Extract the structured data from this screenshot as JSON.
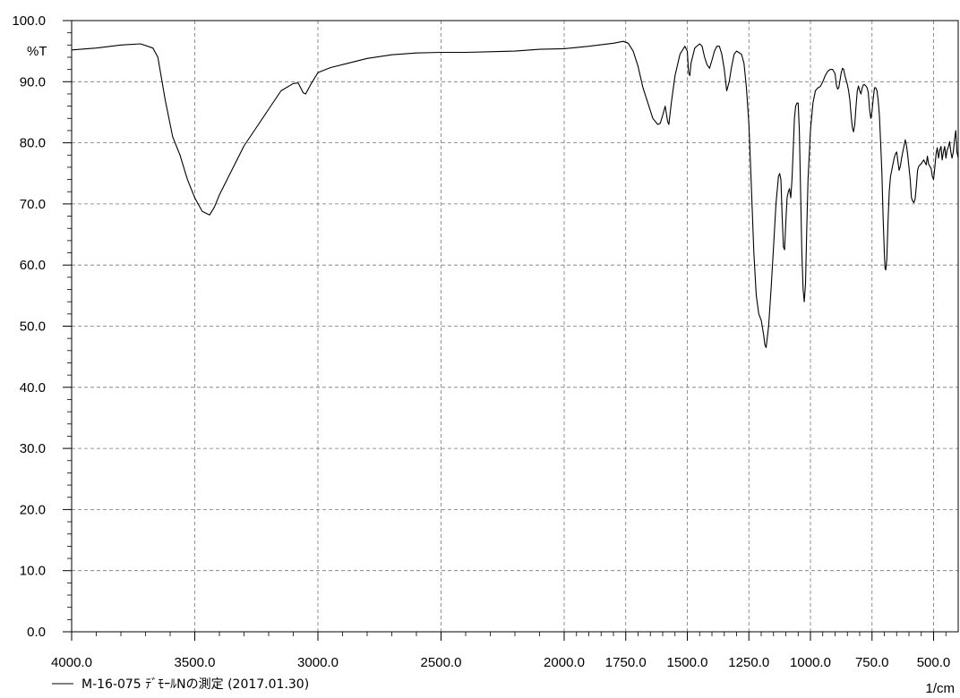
{
  "chart_data": {
    "type": "line",
    "ylabel": "%T",
    "xlabel": "1/cm",
    "xlim": [
      4000.0,
      400.0
    ],
    "ylim": [
      0.0,
      100.0
    ],
    "grid": true,
    "x_ticks": [
      {
        "value": 4000,
        "label": "4000.0"
      },
      {
        "value": 3500,
        "label": "3500.0"
      },
      {
        "value": 3000,
        "label": "3000.0"
      },
      {
        "value": 2500,
        "label": "2500.0"
      },
      {
        "value": 2000,
        "label": "2000.0"
      },
      {
        "value": 1750,
        "label": "1750.0"
      },
      {
        "value": 1500,
        "label": "1500.0"
      },
      {
        "value": 1250,
        "label": "1250.0"
      },
      {
        "value": 1000,
        "label": "1000.0"
      },
      {
        "value": 750,
        "label": "750.0"
      },
      {
        "value": 500,
        "label": "500.0"
      }
    ],
    "y_ticks": [
      {
        "value": 0,
        "label": "0.0"
      },
      {
        "value": 10,
        "label": "10.0"
      },
      {
        "value": 20,
        "label": "20.0"
      },
      {
        "value": 30,
        "label": "30.0"
      },
      {
        "value": 40,
        "label": "40.0"
      },
      {
        "value": 50,
        "label": "50.0"
      },
      {
        "value": 60,
        "label": "60.0"
      },
      {
        "value": 70,
        "label": "70.0"
      },
      {
        "value": 80,
        "label": "80.0"
      },
      {
        "value": 90,
        "label": "90.0"
      },
      {
        "value": 100,
        "label": "100.0"
      }
    ],
    "series": [
      {
        "name": "M-16-075 ﾃﾞﾓｰﾙNの測定 (2017.01.30)",
        "color": "#000000",
        "points": [
          [
            4000,
            95.2
          ],
          [
            3900,
            95.5
          ],
          [
            3800,
            96.0
          ],
          [
            3720,
            96.2
          ],
          [
            3670,
            95.5
          ],
          [
            3650,
            94.0
          ],
          [
            3620,
            87
          ],
          [
            3590,
            81
          ],
          [
            3560,
            78
          ],
          [
            3530,
            74
          ],
          [
            3500,
            71
          ],
          [
            3470,
            68.8
          ],
          [
            3440,
            68.2
          ],
          [
            3420,
            69.5
          ],
          [
            3400,
            71.5
          ],
          [
            3350,
            75.5
          ],
          [
            3300,
            79.5
          ],
          [
            3250,
            82.5
          ],
          [
            3200,
            85.5
          ],
          [
            3150,
            88.5
          ],
          [
            3100,
            89.7
          ],
          [
            3080,
            89.8
          ],
          [
            3060,
            88.2
          ],
          [
            3050,
            88.0
          ],
          [
            3030,
            89.5
          ],
          [
            3000,
            91.5
          ],
          [
            2950,
            92.3
          ],
          [
            2900,
            92.8
          ],
          [
            2800,
            93.8
          ],
          [
            2700,
            94.4
          ],
          [
            2600,
            94.7
          ],
          [
            2500,
            94.8
          ],
          [
            2400,
            94.8
          ],
          [
            2300,
            94.9
          ],
          [
            2200,
            95.0
          ],
          [
            2100,
            95.3
          ],
          [
            2000,
            95.4
          ],
          [
            1900,
            95.8
          ],
          [
            1800,
            96.3
          ],
          [
            1760,
            96.6
          ],
          [
            1740,
            96.3
          ],
          [
            1720,
            95
          ],
          [
            1700,
            92.5
          ],
          [
            1680,
            89
          ],
          [
            1660,
            86.5
          ],
          [
            1640,
            84
          ],
          [
            1620,
            83.0
          ],
          [
            1610,
            83.2
          ],
          [
            1600,
            84.5
          ],
          [
            1590,
            86.0
          ],
          [
            1580,
            83.5
          ],
          [
            1575,
            83.0
          ],
          [
            1565,
            86.5
          ],
          [
            1550,
            91
          ],
          [
            1530,
            94.5
          ],
          [
            1510,
            95.8
          ],
          [
            1500,
            95
          ],
          [
            1495,
            91.5
          ],
          [
            1490,
            91.0
          ],
          [
            1485,
            93
          ],
          [
            1470,
            95.5
          ],
          [
            1450,
            96.2
          ],
          [
            1440,
            95.8
          ],
          [
            1430,
            94
          ],
          [
            1420,
            92.8
          ],
          [
            1410,
            92.2
          ],
          [
            1400,
            93.5
          ],
          [
            1390,
            95
          ],
          [
            1380,
            95.8
          ],
          [
            1370,
            95.8
          ],
          [
            1360,
            94.5
          ],
          [
            1350,
            92
          ],
          [
            1340,
            88.5
          ],
          [
            1330,
            90
          ],
          [
            1320,
            92.5
          ],
          [
            1310,
            94.5
          ],
          [
            1300,
            95
          ],
          [
            1280,
            94.5
          ],
          [
            1270,
            93
          ],
          [
            1260,
            89
          ],
          [
            1250,
            83
          ],
          [
            1240,
            73
          ],
          [
            1230,
            62
          ],
          [
            1220,
            55
          ],
          [
            1210,
            52
          ],
          [
            1200,
            51
          ],
          [
            1190,
            48.5
          ],
          [
            1185,
            47
          ],
          [
            1180,
            46.5
          ],
          [
            1170,
            50
          ],
          [
            1160,
            56
          ],
          [
            1150,
            63
          ],
          [
            1140,
            70
          ],
          [
            1130,
            74.5
          ],
          [
            1125,
            75
          ],
          [
            1120,
            74
          ],
          [
            1115,
            68
          ],
          [
            1110,
            63
          ],
          [
            1105,
            62.5
          ],
          [
            1100,
            67
          ],
          [
            1095,
            71
          ],
          [
            1090,
            72
          ],
          [
            1085,
            72.5
          ],
          [
            1080,
            71
          ],
          [
            1075,
            74
          ],
          [
            1070,
            79
          ],
          [
            1065,
            84
          ],
          [
            1060,
            86
          ],
          [
            1055,
            86.5
          ],
          [
            1050,
            86.5
          ],
          [
            1045,
            82
          ],
          [
            1040,
            72
          ],
          [
            1035,
            62
          ],
          [
            1030,
            56
          ],
          [
            1025,
            54
          ],
          [
            1020,
            57
          ],
          [
            1015,
            66
          ],
          [
            1010,
            74
          ],
          [
            1000,
            82
          ],
          [
            990,
            86.5
          ],
          [
            980,
            88.5
          ],
          [
            970,
            89
          ],
          [
            960,
            89.2
          ],
          [
            950,
            90
          ],
          [
            940,
            91
          ],
          [
            930,
            91.7
          ],
          [
            920,
            92
          ],
          [
            910,
            92
          ],
          [
            900,
            91.3
          ],
          [
            895,
            89.5
          ],
          [
            890,
            88.8
          ],
          [
            885,
            89
          ],
          [
            880,
            90.2
          ],
          [
            875,
            91.5
          ],
          [
            870,
            92.2
          ],
          [
            865,
            92.0
          ],
          [
            860,
            91
          ],
          [
            850,
            89.5
          ],
          [
            845,
            88.5
          ],
          [
            840,
            87
          ],
          [
            835,
            84.5
          ],
          [
            830,
            82.5
          ],
          [
            825,
            81.8
          ],
          [
            820,
            83
          ],
          [
            815,
            86
          ],
          [
            810,
            88.5
          ],
          [
            805,
            89.3
          ],
          [
            800,
            88.5
          ],
          [
            795,
            88
          ],
          [
            790,
            89
          ],
          [
            785,
            89.5
          ],
          [
            780,
            89.5
          ],
          [
            775,
            89.3
          ],
          [
            770,
            89
          ],
          [
            765,
            88.2
          ],
          [
            760,
            85.5
          ],
          [
            755,
            84
          ],
          [
            750,
            85.2
          ],
          [
            745,
            87.2
          ],
          [
            740,
            89
          ],
          [
            735,
            89
          ],
          [
            730,
            88.5
          ],
          [
            725,
            87
          ],
          [
            720,
            84.5
          ],
          [
            715,
            80
          ],
          [
            710,
            75
          ],
          [
            705,
            68
          ],
          [
            700,
            62
          ],
          [
            697,
            59.5
          ],
          [
            694,
            59.2
          ],
          [
            690,
            61
          ],
          [
            685,
            67
          ],
          [
            680,
            72
          ],
          [
            675,
            74.5
          ],
          [
            670,
            75.5
          ],
          [
            665,
            76.5
          ],
          [
            660,
            77.5
          ],
          [
            655,
            78.2
          ],
          [
            650,
            78.5
          ],
          [
            645,
            77
          ],
          [
            640,
            75.5
          ],
          [
            635,
            76.2
          ],
          [
            630,
            77.5
          ],
          [
            625,
            78.5
          ],
          [
            620,
            79.5
          ],
          [
            615,
            80.5
          ],
          [
            610,
            79.5
          ],
          [
            605,
            78
          ],
          [
            600,
            76
          ],
          [
            595,
            74
          ],
          [
            590,
            71
          ],
          [
            585,
            70.5
          ],
          [
            580,
            70.2
          ],
          [
            575,
            70.8
          ],
          [
            570,
            73
          ],
          [
            565,
            75.5
          ],
          [
            560,
            76.2
          ],
          [
            550,
            76.6
          ],
          [
            540,
            77.2
          ],
          [
            530,
            76.4
          ],
          [
            525,
            77.8
          ],
          [
            520,
            76.5
          ],
          [
            510,
            75.8
          ],
          [
            505,
            74.5
          ],
          [
            500,
            74
          ],
          [
            495,
            76
          ],
          [
            490,
            78.2
          ],
          [
            485,
            79.2
          ],
          [
            480,
            77.5
          ],
          [
            475,
            78.8
          ],
          [
            470,
            79.4
          ],
          [
            465,
            77.2
          ],
          [
            460,
            78.5
          ],
          [
            455,
            79.4
          ],
          [
            450,
            77.5
          ],
          [
            445,
            78.8
          ],
          [
            440,
            79.3
          ],
          [
            435,
            80.2
          ],
          [
            430,
            78.5
          ],
          [
            425,
            77.5
          ],
          [
            420,
            78.5
          ],
          [
            415,
            80.5
          ],
          [
            410,
            82
          ],
          [
            405,
            78.5
          ],
          [
            400,
            77.5
          ]
        ]
      }
    ]
  }
}
